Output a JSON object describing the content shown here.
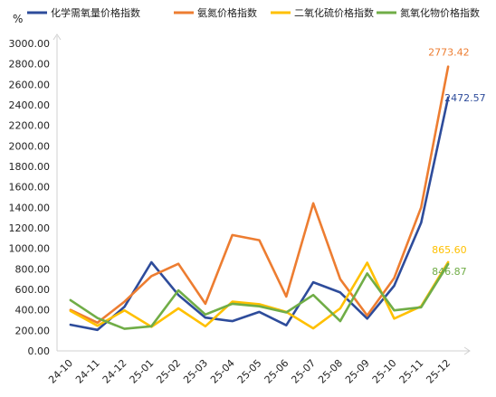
{
  "chart_data": {
    "type": "line",
    "y_unit_label": "%",
    "categories": [
      "24-10",
      "24-11",
      "24-12",
      "25-01",
      "25-02",
      "25-03",
      "25-04",
      "25-05",
      "25-06",
      "25-07",
      "25-08",
      "25-09",
      "25-10",
      "25-11",
      "25-12"
    ],
    "ylim": [
      0,
      3000
    ],
    "yticks": [
      0,
      200,
      400,
      600,
      800,
      1000,
      1200,
      1400,
      1600,
      1800,
      2000,
      2200,
      2400,
      2600,
      2800,
      3000
    ],
    "ytick_labels": [
      "0.00",
      "200.00",
      "400.00",
      "600.00",
      "800.00",
      "1000.00",
      "1200.00",
      "1400.00",
      "1600.00",
      "1800.00",
      "2000.00",
      "2200.00",
      "2400.00",
      "2600.00",
      "2800.00",
      "3000.00"
    ],
    "grid": false,
    "legend_position": "top",
    "series": [
      {
        "name": "化学需氧量价格指数",
        "color": "#2E4C9B",
        "values": [
          255,
          205,
          430,
          865,
          545,
          325,
          290,
          380,
          250,
          670,
          570,
          315,
          635,
          1250,
          2472.57
        ],
        "label_last": "2472.57"
      },
      {
        "name": "氨氮价格指数",
        "color": "#ED7D31",
        "values": [
          400,
          275,
          480,
          730,
          850,
          460,
          1130,
          1080,
          530,
          1440,
          700,
          345,
          710,
          1400,
          2773.42
        ],
        "label_last": "2773.42"
      },
      {
        "name": "二氧化硫价格指数",
        "color": "#FFC000",
        "values": [
          390,
          245,
          395,
          235,
          415,
          240,
          480,
          455,
          380,
          220,
          415,
          860,
          315,
          435,
          865.6
        ],
        "label_last": "865.60"
      },
      {
        "name": "氮氧化物价格指数",
        "color": "#70AD47",
        "values": [
          495,
          320,
          215,
          240,
          590,
          355,
          460,
          435,
          375,
          545,
          290,
          755,
          395,
          425,
          846.87
        ],
        "label_last": "846.87"
      }
    ]
  }
}
